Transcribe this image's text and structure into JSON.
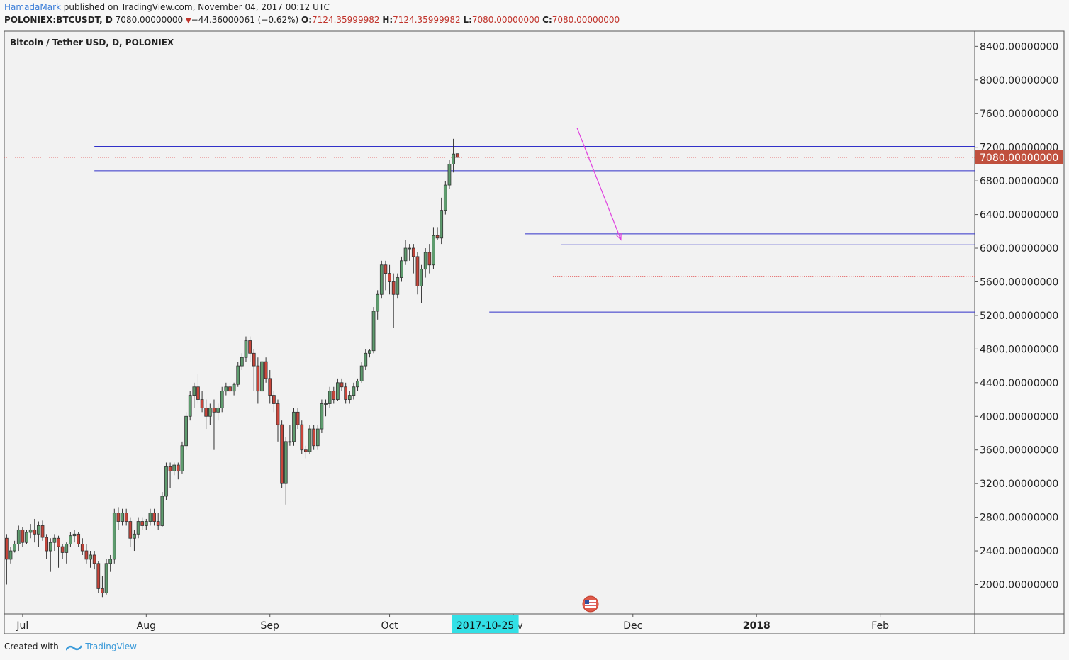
{
  "header": {
    "author": "HamadaMark",
    "published_text": " published on TradingView.com, November 04, 2017 00:12 UTC",
    "symbol": "POLONIEX:BTCUSDT, D",
    "last": "7080.00000000",
    "change": "−44.36000061 (−0.62%)",
    "o_label": "O:",
    "o_value": "7124.35999982",
    "h_label": "H:",
    "h_value": "7124.35999982",
    "l_label": "L:",
    "l_value": "7080.00000000",
    "c_label": "C:",
    "c_value": "7080.00000000"
  },
  "footer": {
    "created_with": "Created with",
    "brand": "TradingView"
  },
  "chart_data": {
    "type": "candlestick",
    "title": "Bitcoin / Tether USD, D, POLONIEX",
    "last_price_label": "7080.00000000",
    "crosshair_date_label": "2017-10-25",
    "y_ticks": [
      {
        "value": 8400,
        "label": "8400.00000000"
      },
      {
        "value": 8000,
        "label": "8000.00000000"
      },
      {
        "value": 7600,
        "label": "7600.00000000"
      },
      {
        "value": 7200,
        "label": "7200.00000000"
      },
      {
        "value": 6800,
        "label": "6800.00000000"
      },
      {
        "value": 6400,
        "label": "6400.00000000"
      },
      {
        "value": 6000,
        "label": "6000.00000000"
      },
      {
        "value": 5600,
        "label": "5600.00000000"
      },
      {
        "value": 5200,
        "label": "5200.00000000"
      },
      {
        "value": 4800,
        "label": "4800.00000000"
      },
      {
        "value": 4400,
        "label": "4400.00000000"
      },
      {
        "value": 4000,
        "label": "4000.00000000"
      },
      {
        "value": 3600,
        "label": "3600.00000000"
      },
      {
        "value": 3200,
        "label": "3200.00000000"
      },
      {
        "value": 2800,
        "label": "2800.00000000"
      },
      {
        "value": 2400,
        "label": "2400.00000000"
      },
      {
        "value": 2000,
        "label": "2000.00000000"
      }
    ],
    "x_ticks": [
      {
        "day": 4,
        "label": "Jul",
        "bold": false
      },
      {
        "day": 35,
        "label": "Aug",
        "bold": false
      },
      {
        "day": 66,
        "label": "Sep",
        "bold": false
      },
      {
        "day": 96,
        "label": "Oct",
        "bold": false
      },
      {
        "day": 127,
        "label": "Nov",
        "bold": false
      },
      {
        "day": 157,
        "label": "Dec",
        "bold": false
      },
      {
        "day": 188,
        "label": "2018",
        "bold": true
      },
      {
        "day": 219,
        "label": "Feb",
        "bold": false
      }
    ],
    "x_start_date": "2017-06-27",
    "crosshair_day": 120,
    "y_range": [
      1650,
      8580
    ],
    "x_range": [
      -0.6,
      242.7
    ],
    "levels": [
      {
        "price": 7210,
        "from_day": 22,
        "color": "#3030c8",
        "style": "solid"
      },
      {
        "price": 7080,
        "from_day": -0.6,
        "color": "#e04040",
        "style": "dotted"
      },
      {
        "price": 6920,
        "from_day": 22,
        "color": "#3030c8",
        "style": "solid"
      },
      {
        "price": 6620,
        "from_day": 129,
        "color": "#3030c8",
        "style": "solid"
      },
      {
        "price": 6170,
        "from_day": 130,
        "color": "#3030c8",
        "style": "solid"
      },
      {
        "price": 6040,
        "from_day": 139,
        "color": "#3030c8",
        "style": "solid"
      },
      {
        "price": 5660,
        "from_day": 137,
        "color": "#e04040",
        "style": "dotted"
      },
      {
        "price": 5240,
        "from_day": 121,
        "color": "#3030c8",
        "style": "solid"
      },
      {
        "price": 4740,
        "from_day": 115,
        "color": "#3030c8",
        "style": "solid"
      }
    ],
    "arrow": {
      "from_day": 143,
      "from_price": 7430,
      "to_day": 154,
      "to_price": 6100,
      "color": "#e040e0"
    },
    "candles": [
      [
        2550,
        2600,
        2000,
        2300
      ],
      [
        2300,
        2450,
        2250,
        2400
      ],
      [
        2400,
        2520,
        2380,
        2480
      ],
      [
        2480,
        2700,
        2400,
        2650
      ],
      [
        2650,
        2680,
        2450,
        2500
      ],
      [
        2500,
        2650,
        2480,
        2620
      ],
      [
        2620,
        2720,
        2550,
        2650
      ],
      [
        2650,
        2780,
        2500,
        2600
      ],
      [
        2600,
        2750,
        2450,
        2700
      ],
      [
        2700,
        2760,
        2520,
        2560
      ],
      [
        2560,
        2600,
        2300,
        2400
      ],
      [
        2400,
        2550,
        2150,
        2500
      ],
      [
        2500,
        2600,
        2400,
        2550
      ],
      [
        2550,
        2580,
        2200,
        2450
      ],
      [
        2450,
        2480,
        2300,
        2380
      ],
      [
        2380,
        2500,
        2250,
        2480
      ],
      [
        2480,
        2620,
        2450,
        2580
      ],
      [
        2580,
        2650,
        2500,
        2600
      ],
      [
        2600,
        2620,
        2450,
        2480
      ],
      [
        2480,
        2550,
        2350,
        2400
      ],
      [
        2400,
        2480,
        2250,
        2300
      ],
      [
        2300,
        2400,
        2200,
        2350
      ],
      [
        2350,
        2400,
        2180,
        2250
      ],
      [
        2250,
        2280,
        1900,
        1950
      ],
      [
        1950,
        2100,
        1850,
        1900
      ],
      [
        1900,
        2300,
        1880,
        2250
      ],
      [
        2250,
        2350,
        2150,
        2300
      ],
      [
        2300,
        2900,
        2250,
        2850
      ],
      [
        2850,
        2920,
        2650,
        2750
      ],
      [
        2750,
        2900,
        2700,
        2850
      ],
      [
        2850,
        2900,
        2700,
        2750
      ],
      [
        2750,
        2800,
        2450,
        2550
      ],
      [
        2550,
        2650,
        2400,
        2600
      ],
      [
        2600,
        2800,
        2550,
        2750
      ],
      [
        2750,
        2800,
        2650,
        2700
      ],
      [
        2700,
        2780,
        2650,
        2750
      ],
      [
        2750,
        2900,
        2700,
        2850
      ],
      [
        2850,
        2900,
        2700,
        2750
      ],
      [
        2750,
        2850,
        2650,
        2700
      ],
      [
        2700,
        3100,
        2680,
        3050
      ],
      [
        3050,
        3450,
        3000,
        3400
      ],
      [
        3400,
        3450,
        3150,
        3350
      ],
      [
        3350,
        3450,
        3300,
        3420
      ],
      [
        3420,
        3450,
        3250,
        3350
      ],
      [
        3350,
        3700,
        3320,
        3650
      ],
      [
        3650,
        4050,
        3600,
        4000
      ],
      [
        4000,
        4300,
        3950,
        4250
      ],
      [
        4250,
        4400,
        4100,
        4350
      ],
      [
        4350,
        4500,
        4150,
        4200
      ],
      [
        4200,
        4300,
        4050,
        4100
      ],
      [
        4100,
        4200,
        3850,
        4000
      ],
      [
        4000,
        4150,
        3900,
        4100
      ],
      [
        4100,
        4200,
        3600,
        4050
      ],
      [
        4050,
        4150,
        3950,
        4100
      ],
      [
        4100,
        4350,
        4050,
        4300
      ],
      [
        4300,
        4400,
        4250,
        4350
      ],
      [
        4350,
        4400,
        4250,
        4300
      ],
      [
        4300,
        4400,
        4250,
        4380
      ],
      [
        4380,
        4650,
        4350,
        4600
      ],
      [
        4600,
        4750,
        4550,
        4700
      ],
      [
        4700,
        4950,
        4650,
        4900
      ],
      [
        4900,
        4950,
        4650,
        4750
      ],
      [
        4750,
        4800,
        4300,
        4600
      ],
      [
        4600,
        4700,
        4150,
        4300
      ],
      [
        4300,
        4700,
        4000,
        4650
      ],
      [
        4650,
        4700,
        4400,
        4450
      ],
      [
        4450,
        4550,
        4150,
        4250
      ],
      [
        4250,
        4300,
        4050,
        4150
      ],
      [
        4150,
        4200,
        3700,
        3900
      ],
      [
        3900,
        3950,
        3150,
        3200
      ],
      [
        3200,
        3750,
        2950,
        3700
      ],
      [
        3700,
        3900,
        3650,
        3700
      ],
      [
        3700,
        4100,
        3650,
        4050
      ],
      [
        4050,
        4100,
        3850,
        3900
      ],
      [
        3900,
        3950,
        3550,
        3600
      ],
      [
        3600,
        3650,
        3500,
        3580
      ],
      [
        3580,
        3900,
        3550,
        3850
      ],
      [
        3850,
        3900,
        3600,
        3650
      ],
      [
        3650,
        3900,
        3600,
        3850
      ],
      [
        3850,
        4200,
        3800,
        4150
      ],
      [
        4150,
        4200,
        4000,
        4150
      ],
      [
        4150,
        4350,
        4100,
        4300
      ],
      [
        4300,
        4350,
        4150,
        4200
      ],
      [
        4200,
        4450,
        4180,
        4400
      ],
      [
        4400,
        4450,
        4300,
        4350
      ],
      [
        4350,
        4400,
        4150,
        4200
      ],
      [
        4200,
        4300,
        4150,
        4250
      ],
      [
        4250,
        4400,
        4200,
        4350
      ],
      [
        4350,
        4450,
        4300,
        4420
      ],
      [
        4420,
        4650,
        4400,
        4600
      ],
      [
        4600,
        4800,
        4550,
        4750
      ],
      [
        4750,
        4800,
        4700,
        4780
      ],
      [
        4780,
        5300,
        4750,
        5250
      ],
      [
        5250,
        5500,
        5150,
        5450
      ],
      [
        5450,
        5850,
        5400,
        5800
      ],
      [
        5800,
        5850,
        5500,
        5700
      ],
      [
        5700,
        5800,
        5450,
        5600
      ],
      [
        5600,
        5700,
        5050,
        5450
      ],
      [
        5450,
        5700,
        5400,
        5650
      ],
      [
        5650,
        5900,
        5600,
        5850
      ],
      [
        5850,
        6100,
        5800,
        6000
      ],
      [
        6000,
        6050,
        5850,
        6000
      ],
      [
        6000,
        6050,
        5700,
        5900
      ],
      [
        5900,
        5950,
        5450,
        5550
      ],
      [
        5550,
        5800,
        5350,
        5750
      ],
      [
        5750,
        6000,
        5650,
        5950
      ],
      [
        5950,
        6050,
        5700,
        5800
      ],
      [
        5800,
        6250,
        5750,
        6150
      ],
      [
        6150,
        6250,
        6100,
        6120
      ],
      [
        6120,
        6600,
        6050,
        6450
      ],
      [
        6450,
        6800,
        6400,
        6750
      ],
      [
        6750,
        7050,
        6700,
        7000
      ],
      [
        7000,
        7300,
        6900,
        7120
      ],
      [
        7124,
        7124,
        7080,
        7080
      ]
    ]
  }
}
